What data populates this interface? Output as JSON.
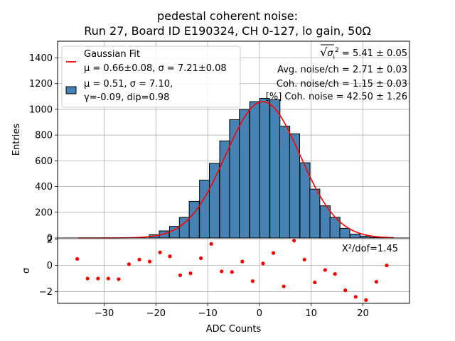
{
  "chart_data": [
    {
      "type": "bar",
      "panel": "main",
      "title_lines": [
        "pedestal coherent noise:",
        "Run 27, Board ID E190324, CH 0-127, lo gain, 50Ω"
      ],
      "xlabel": "ADC Counts",
      "ylabel": "Entries",
      "xlim": [
        -39,
        29
      ],
      "ylim": [
        0,
        1530
      ],
      "yticks": [
        0,
        200,
        400,
        600,
        800,
        1000,
        1200,
        1400
      ],
      "xticks": [
        -30,
        -20,
        -10,
        0,
        10,
        20
      ],
      "grid": true,
      "bar_color": "#4682b4",
      "bin_width": 1.94,
      "bins": [
        {
          "x": -20.3,
          "value": 25
        },
        {
          "x": -18.4,
          "value": 55
        },
        {
          "x": -16.4,
          "value": 90
        },
        {
          "x": -14.5,
          "value": 160
        },
        {
          "x": -12.6,
          "value": 285
        },
        {
          "x": -10.6,
          "value": 450
        },
        {
          "x": -8.7,
          "value": 580
        },
        {
          "x": -6.7,
          "value": 755
        },
        {
          "x": -4.8,
          "value": 920
        },
        {
          "x": -2.9,
          "value": 1000
        },
        {
          "x": -0.9,
          "value": 1060
        },
        {
          "x": 1.0,
          "value": 1085
        },
        {
          "x": 3.0,
          "value": 1075
        },
        {
          "x": 4.9,
          "value": 870
        },
        {
          "x": 6.8,
          "value": 810
        },
        {
          "x": 8.8,
          "value": 585
        },
        {
          "x": 10.7,
          "value": 380
        },
        {
          "x": 12.7,
          "value": 250
        },
        {
          "x": 14.6,
          "value": 160
        },
        {
          "x": 16.5,
          "value": 75
        },
        {
          "x": 18.5,
          "value": 30
        },
        {
          "x": 20.4,
          "value": 15
        },
        {
          "x": 22.4,
          "value": 5
        },
        {
          "x": 24.3,
          "value": 2
        }
      ],
      "fit": {
        "name": "Gaussian Fit",
        "mu": 0.66,
        "sigma": 7.21,
        "amplitude": 1060,
        "x_range": [
          -35,
          26
        ],
        "color": "#ff0000"
      },
      "legend": {
        "placement": "upper left",
        "entries": [
          {
            "lines": [
              "Gaussian Fit",
              "μ = 0.66±0.08, σ = 7.21±0.08"
            ],
            "marker": "line",
            "color": "#ff0000"
          },
          {
            "lines": [
              "μ = 0.51, σ = 7.10,",
              "γ=-0.09, dip=0.98"
            ],
            "marker": "patch",
            "color": "#4682b4"
          }
        ]
      },
      "annotations": [
        {
          "sqrt_symbol": "√",
          "sigma": "σ",
          "sup": "2",
          "sub": "i",
          "value": " = 5.41 ± 0.05"
        },
        {
          "text": "Avg. noise/ch = 2.71 ± 0.03"
        },
        {
          "text": "Coh. noise/ch = 1.15 ± 0.03"
        },
        {
          "text": "[%] Coh. noise = 42.50  ± 1.26"
        }
      ]
    },
    {
      "type": "scatter",
      "panel": "residuals",
      "xlabel": "ADC Counts",
      "ylabel": "σ",
      "xlim": [
        -39,
        29
      ],
      "ylim": [
        -2.9,
        2.1
      ],
      "yticks": [
        -2,
        0,
        2
      ],
      "xticks": [
        -30,
        -20,
        -10,
        0,
        10,
        20
      ],
      "grid": true,
      "color": "#ff0000",
      "annotation": "X²/dof=1.45",
      "points": [
        {
          "x": -35.2,
          "y": 0.5
        },
        {
          "x": -33.2,
          "y": -1.0
        },
        {
          "x": -31.2,
          "y": -1.0
        },
        {
          "x": -29.2,
          "y": -1.0
        },
        {
          "x": -27.2,
          "y": -1.05
        },
        {
          "x": -25.2,
          "y": 0.1
        },
        {
          "x": -23.2,
          "y": 0.45
        },
        {
          "x": -21.2,
          "y": 0.3
        },
        {
          "x": -19.2,
          "y": 1.0
        },
        {
          "x": -17.3,
          "y": 0.7
        },
        {
          "x": -15.3,
          "y": -0.75
        },
        {
          "x": -13.3,
          "y": -0.6
        },
        {
          "x": -11.3,
          "y": 0.55
        },
        {
          "x": -9.3,
          "y": 1.65
        },
        {
          "x": -7.3,
          "y": -0.45
        },
        {
          "x": -5.3,
          "y": -0.5
        },
        {
          "x": -3.3,
          "y": 0.3
        },
        {
          "x": -1.3,
          "y": -1.2
        },
        {
          "x": 0.7,
          "y": 0.15
        },
        {
          "x": 2.7,
          "y": 0.95
        },
        {
          "x": 4.7,
          "y": -1.6
        },
        {
          "x": 6.7,
          "y": 1.9
        },
        {
          "x": 8.7,
          "y": 0.45
        },
        {
          "x": 10.7,
          "y": -1.3
        },
        {
          "x": 12.7,
          "y": -0.35
        },
        {
          "x": 14.6,
          "y": -0.65
        },
        {
          "x": 16.6,
          "y": -1.9
        },
        {
          "x": 18.6,
          "y": -2.4
        },
        {
          "x": 20.6,
          "y": -2.65
        },
        {
          "x": 22.6,
          "y": -1.25
        },
        {
          "x": 24.6,
          "y": 0.0
        }
      ]
    }
  ]
}
